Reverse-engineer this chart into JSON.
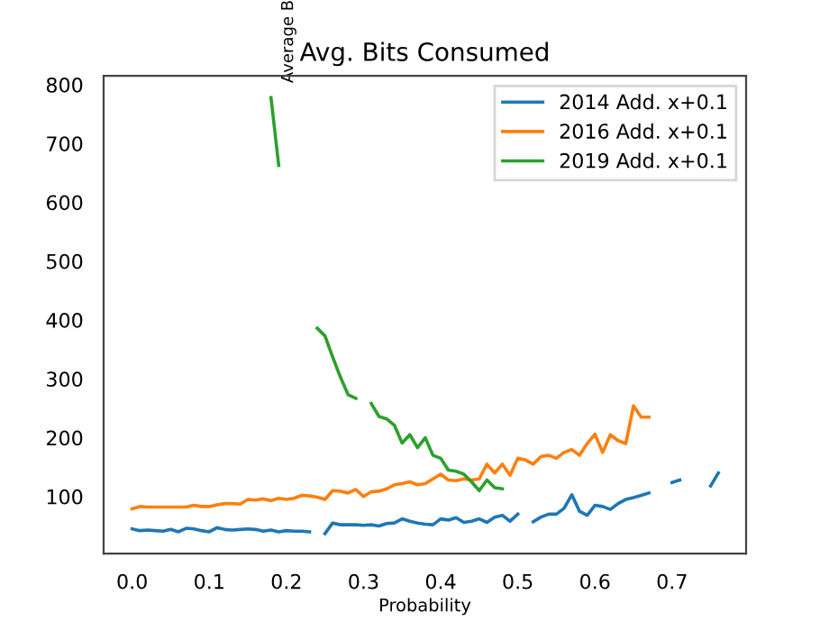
{
  "chart_data": {
    "type": "line",
    "title": "Avg. Bits Consumed",
    "xlabel": "Probability",
    "ylabel": "Average B",
    "xlim": [
      -0.037,
      0.796
    ],
    "ylim": [
      3,
      815
    ],
    "xticks": [
      {
        "value": 0,
        "label": "0.0"
      },
      0.1,
      0.2,
      0.3,
      0.4,
      0.5,
      0.6,
      0.7
    ],
    "yticks": [
      100,
      200,
      300,
      400,
      500,
      600,
      700,
      800
    ],
    "grid": false,
    "legend": "top right",
    "series": [
      {
        "name": "2014 Add. x+0.1",
        "color": "#1f77b4",
        "x": [
          0.0,
          0.01,
          0.02,
          0.03,
          0.04,
          0.05,
          0.06,
          0.07,
          0.08,
          0.09,
          0.1,
          0.11,
          0.12,
          0.13,
          0.14,
          0.15,
          0.16,
          0.17,
          0.18,
          0.19,
          0.2,
          0.21,
          0.22,
          0.23,
          0.24,
          0.25,
          0.26,
          0.27,
          0.28,
          0.29,
          0.3,
          0.31,
          0.32,
          0.33,
          0.34,
          0.35,
          0.36,
          0.37,
          0.38,
          0.39,
          0.4,
          0.41,
          0.42,
          0.43,
          0.44,
          0.45,
          0.46,
          0.47,
          0.48,
          0.49,
          0.5,
          0.51,
          0.52,
          0.53,
          0.54,
          0.55,
          0.56,
          0.57,
          0.58,
          0.59,
          0.6,
          0.61,
          0.62,
          0.63,
          0.64,
          0.65,
          0.66,
          0.67,
          0.68,
          0.7,
          0.71,
          0.72,
          0.75,
          0.76
        ],
        "values": [
          45,
          42,
          43,
          42,
          41,
          44,
          40,
          46,
          45,
          42,
          40,
          47,
          44,
          43,
          44,
          45,
          44,
          41,
          43,
          40,
          42,
          41,
          41,
          40,
          null,
          37,
          55,
          52,
          52,
          52,
          51,
          52,
          50,
          54,
          55,
          62,
          58,
          55,
          53,
          52,
          62,
          60,
          64,
          56,
          58,
          62,
          56,
          65,
          68,
          58,
          70,
          null,
          57,
          65,
          70,
          70,
          80,
          103,
          75,
          68,
          85,
          83,
          78,
          88,
          95,
          98,
          102,
          106,
          null,
          124,
          128,
          null,
          118,
          140
        ]
      },
      {
        "name": "2016 Add. x+0.1",
        "color": "#ff7f0e",
        "x": [
          0.0,
          0.01,
          0.02,
          0.03,
          0.04,
          0.05,
          0.06,
          0.07,
          0.08,
          0.09,
          0.1,
          0.11,
          0.12,
          0.13,
          0.14,
          0.15,
          0.16,
          0.17,
          0.18,
          0.19,
          0.2,
          0.21,
          0.22,
          0.23,
          0.24,
          0.25,
          0.26,
          0.27,
          0.28,
          0.29,
          0.3,
          0.31,
          0.32,
          0.33,
          0.34,
          0.35,
          0.36,
          0.37,
          0.38,
          0.39,
          0.4,
          0.41,
          0.42,
          0.43,
          0.44,
          0.45,
          0.46,
          0.47,
          0.48,
          0.49,
          0.5,
          0.51,
          0.52,
          0.53,
          0.54,
          0.55,
          0.56,
          0.57,
          0.58,
          0.59,
          0.6,
          0.61,
          0.62,
          0.63,
          0.64,
          0.65,
          0.66,
          0.67
        ],
        "values": [
          79,
          83,
          82,
          82,
          82,
          82,
          82,
          82,
          85,
          83,
          83,
          86,
          88,
          88,
          87,
          95,
          94,
          96,
          93,
          97,
          95,
          97,
          102,
          101,
          99,
          95,
          110,
          109,
          106,
          112,
          100,
          108,
          109,
          113,
          120,
          122,
          125,
          120,
          122,
          130,
          138,
          128,
          127,
          130,
          128,
          130,
          155,
          140,
          155,
          136,
          165,
          162,
          155,
          168,
          170,
          165,
          175,
          180,
          170,
          190,
          206,
          175,
          205,
          195,
          190,
          254,
          235,
          235
        ]
      },
      {
        "name": "2019 Add. x+0.1",
        "color": "#2ca02c",
        "x": [
          0.18,
          0.19,
          0.2,
          0.24,
          0.25,
          0.26,
          0.27,
          0.28,
          0.29,
          0.3,
          0.31,
          0.32,
          0.33,
          0.34,
          0.35,
          0.36,
          0.37,
          0.38,
          0.39,
          0.4,
          0.41,
          0.42,
          0.43,
          0.44,
          0.45,
          0.46,
          0.47,
          0.48
        ],
        "values": [
          778,
          663,
          null,
          386,
          373,
          337,
          303,
          273,
          267,
          null,
          258,
          236,
          232,
          221,
          191,
          205,
          183,
          200,
          170,
          165,
          145,
          143,
          138,
          125,
          110,
          128,
          115,
          113
        ]
      }
    ]
  }
}
